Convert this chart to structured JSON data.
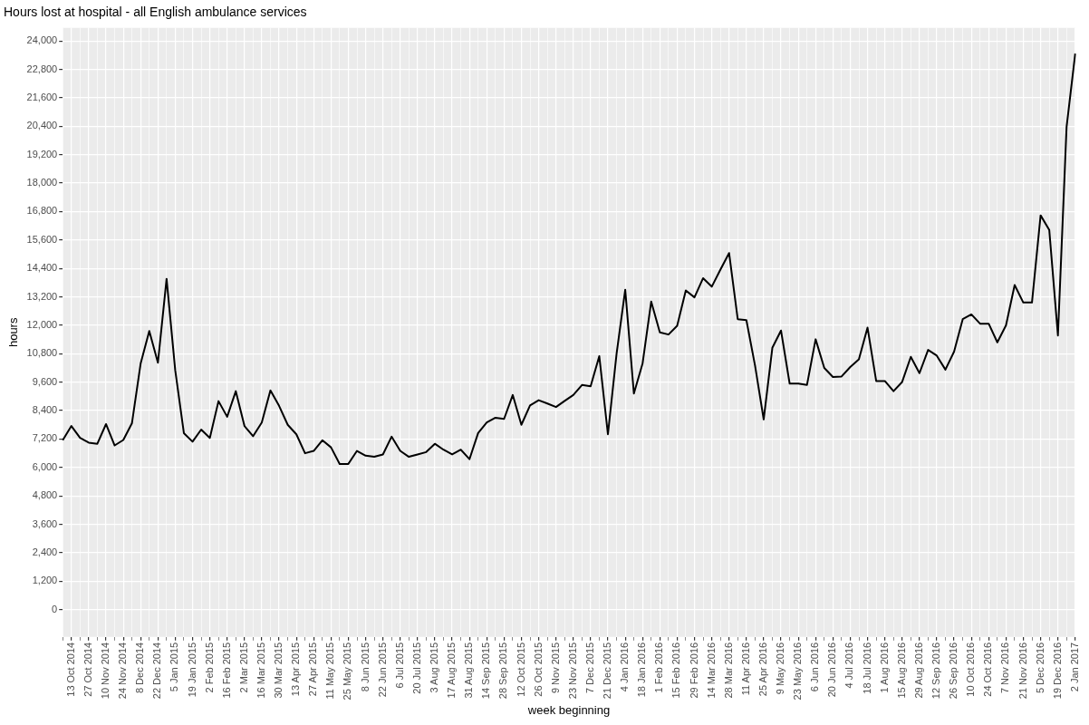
{
  "chart_data": {
    "type": "line",
    "title": "Hours lost at hospital - all English ambulance services",
    "xlabel": "week beginning",
    "ylabel": "hours",
    "categories": [
      null,
      "13 Oct 2014",
      null,
      "27 Oct 2014",
      null,
      "10 Nov 2014",
      null,
      "24 Nov 2014",
      null,
      "8 Dec 2014",
      null,
      "22 Dec 2014",
      null,
      "5 Jan 2015",
      null,
      "19 Jan 2015",
      null,
      "2 Feb 2015",
      null,
      "16 Feb 2015",
      null,
      "2 Mar 2015",
      null,
      "16 Mar 2015",
      null,
      "30 Mar 2015",
      null,
      "13 Apr 2015",
      null,
      "27 Apr 2015",
      null,
      "11 May 2015",
      null,
      "25 May 2015",
      null,
      "8 Jun 2015",
      null,
      "22 Jun 2015",
      null,
      "6 Jul 2015",
      null,
      "20 Jul 2015",
      null,
      "3 Aug 2015",
      null,
      "17 Aug 2015",
      null,
      "31 Aug 2015",
      null,
      "14 Sep 2015",
      null,
      "28 Sep 2015",
      null,
      "12 Oct 2015",
      null,
      "26 Oct 2015",
      null,
      "9 Nov 2015",
      null,
      "23 Nov 2015",
      null,
      "7 Dec 2015",
      null,
      "21 Dec 2015",
      null,
      "4 Jan 2016",
      null,
      "18 Jan 2016",
      null,
      "1 Feb 2016",
      null,
      "15 Feb 2016",
      null,
      "29 Feb 2016",
      null,
      "14 Mar 2016",
      null,
      "28 Mar 2016",
      null,
      "11 Apr 2016",
      null,
      "25 Apr 2016",
      null,
      "9 May 2016",
      null,
      "23 May 2016",
      null,
      "6 Jun 2016",
      null,
      "20 Jun 2016",
      null,
      "4 Jul 2016",
      null,
      "18 Jul 2016",
      null,
      "1 Aug 2016",
      null,
      "15 Aug 2016",
      null,
      "29 Aug 2016",
      null,
      "12 Sep 2016",
      null,
      "26 Sep 2016",
      null,
      "10 Oct 2016",
      null,
      "24 Oct 2016",
      null,
      "7 Nov 2016",
      null,
      "21 Nov 2016",
      null,
      "5 Dec 2016",
      null,
      "19 Dec 2016",
      null,
      "2 Jan 2017"
    ],
    "series": [
      {
        "color": "#000000",
        "values": [
          7150,
          7750,
          7250,
          7050,
          7000,
          7830,
          6930,
          7160,
          7870,
          10380,
          11760,
          10420,
          13960,
          10100,
          7450,
          7090,
          7600,
          7250,
          8800,
          8140,
          9220,
          7750,
          7320,
          7900,
          9250,
          8600,
          7800,
          7400,
          6600,
          6700,
          7150,
          6850,
          6150,
          6150,
          6700,
          6500,
          6450,
          6550,
          7300,
          6700,
          6450,
          6550,
          6650,
          7000,
          6750,
          6550,
          6750,
          6350,
          7450,
          7900,
          8100,
          8050,
          9060,
          7800,
          8620,
          8840,
          8700,
          8550,
          8810,
          9060,
          9480,
          9430,
          10700,
          7400,
          10800,
          13500,
          9120,
          10380,
          13000,
          11700,
          11610,
          11980,
          13470,
          13180,
          13990,
          13630,
          14350,
          15050,
          12260,
          12220,
          10300,
          8030,
          11050,
          11780,
          9540,
          9540,
          9480,
          11410,
          10200,
          9820,
          9840,
          10240,
          10560,
          11900,
          9650,
          9650,
          9220,
          9610,
          10670,
          9980,
          10960,
          10720,
          10130,
          10890,
          12260,
          12460,
          12070,
          12070,
          11280,
          12000,
          13700,
          12960,
          12960,
          16640,
          16020,
          11570,
          20370,
          23470
        ]
      }
    ],
    "ylim": [
      -1150,
      24550
    ],
    "yticks": [
      {
        "value": 0,
        "label": "0"
      },
      {
        "value": 1200,
        "label": "1,200"
      },
      {
        "value": 2400,
        "label": "2,400"
      },
      {
        "value": 3600,
        "label": "3,600"
      },
      {
        "value": 4800,
        "label": "4,800"
      },
      {
        "value": 6000,
        "label": "6,000"
      },
      {
        "value": 7200,
        "label": "7,200"
      },
      {
        "value": 8400,
        "label": "8,400"
      },
      {
        "value": 9600,
        "label": "9,600"
      },
      {
        "value": 10800,
        "label": "10,800"
      },
      {
        "value": 12000,
        "label": "12,000"
      },
      {
        "value": 13200,
        "label": "13,200"
      },
      {
        "value": 14400,
        "label": "14,400"
      },
      {
        "value": 15600,
        "label": "15,600"
      },
      {
        "value": 16800,
        "label": "16,800"
      },
      {
        "value": 18000,
        "label": "18,000"
      },
      {
        "value": 19200,
        "label": "19,200"
      },
      {
        "value": 20400,
        "label": "20,400"
      },
      {
        "value": 21600,
        "label": "21,600"
      },
      {
        "value": 22800,
        "label": "22,800"
      },
      {
        "value": 24000,
        "label": "24,000"
      }
    ],
    "grid": true,
    "legend": false,
    "marker": "none",
    "line_style": "solid"
  }
}
